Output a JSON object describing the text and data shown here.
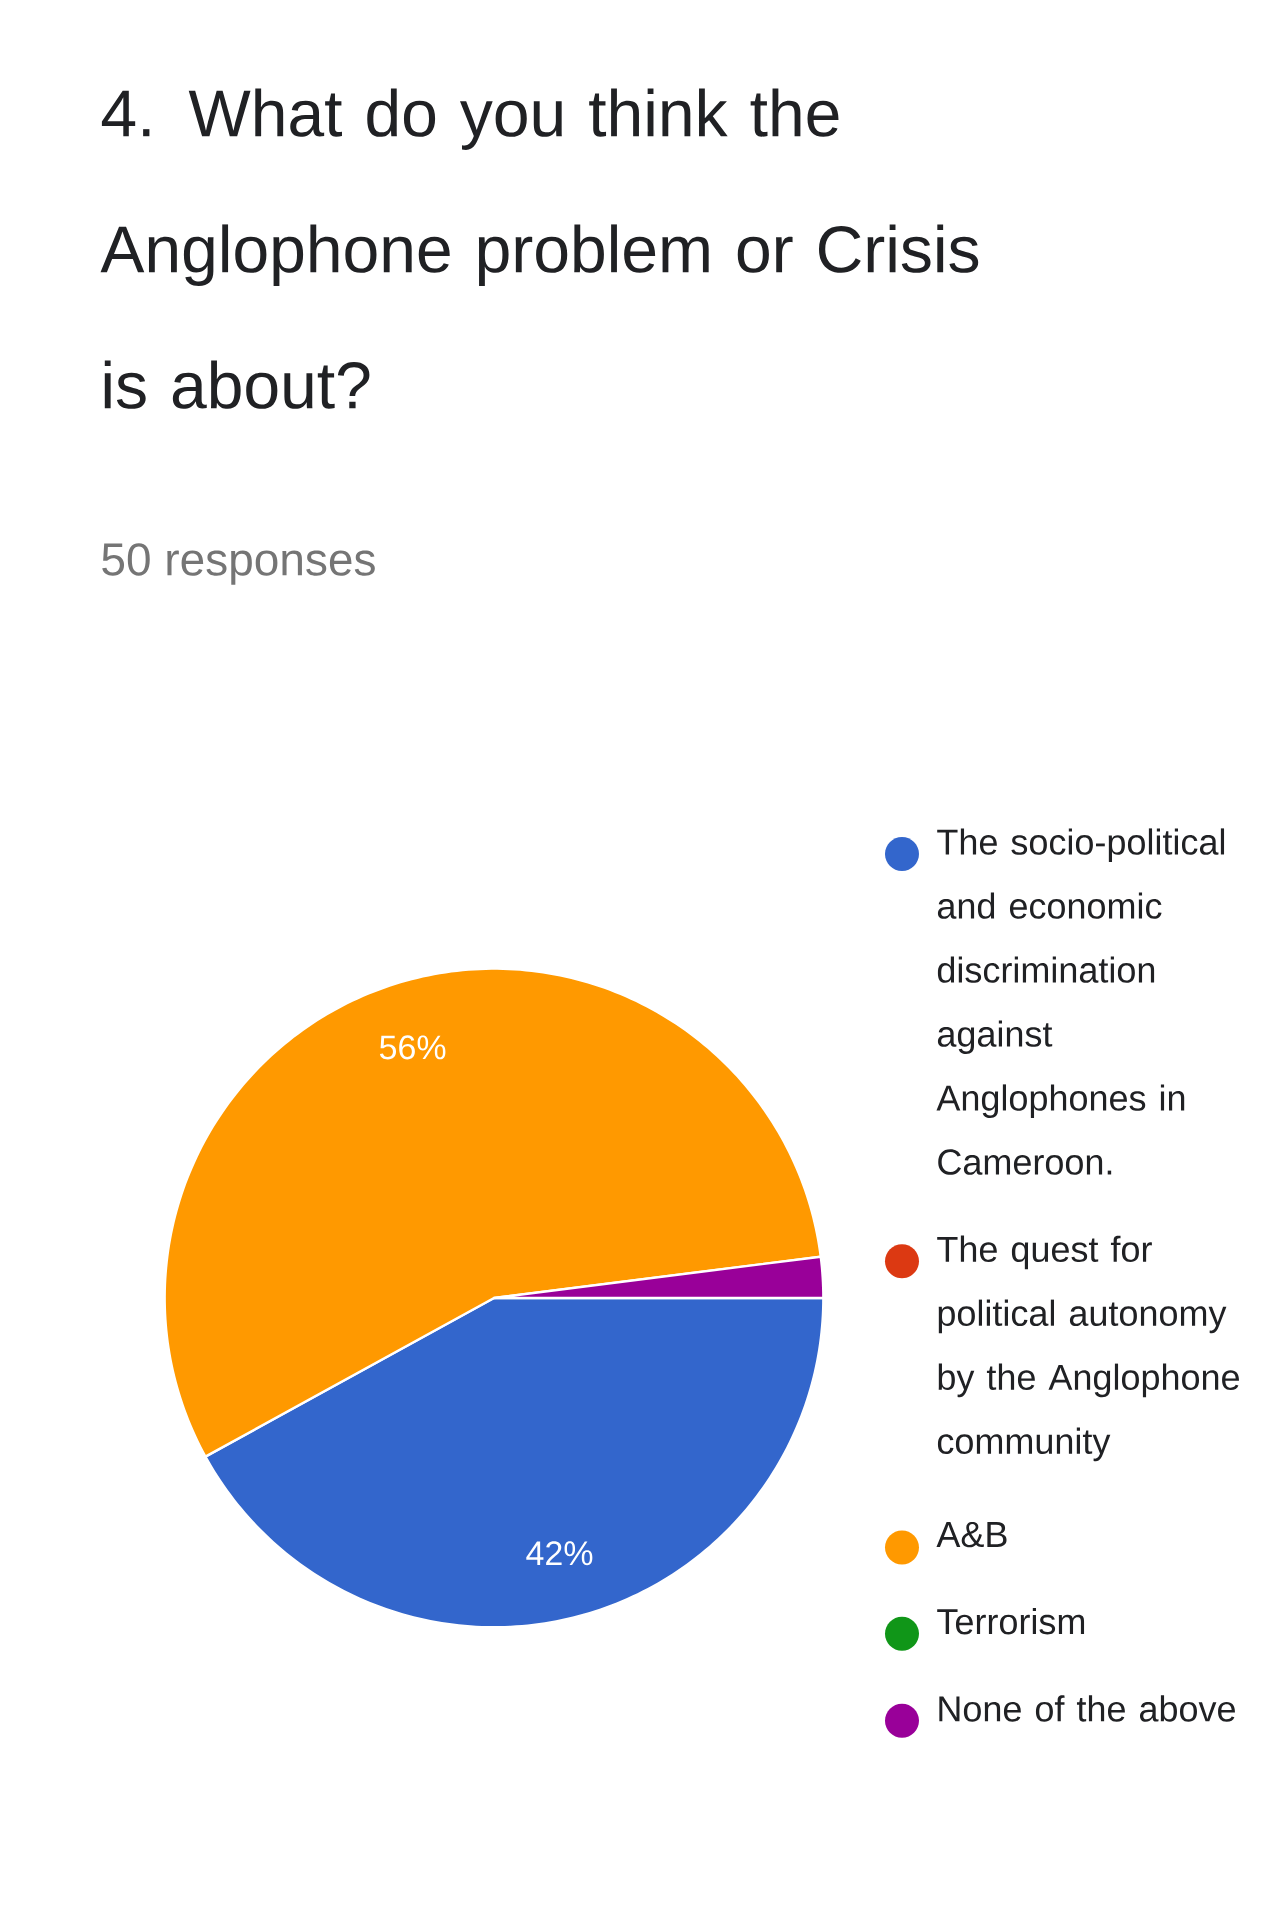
{
  "chart_data": {
    "type": "pie",
    "title": "4. What do you think the Anglophone problem or Crisis is about?",
    "subtitle": "50 responses",
    "categories": [
      "The socio-political and economic discrimination against Anglophones in Cameroon.",
      "The quest for political autonomy by the Anglophone community",
      "A&B",
      "Terrorism",
      "None of the above"
    ],
    "values": [
      42,
      0,
      56,
      0,
      2
    ],
    "colors": [
      "#3366cc",
      "#dc3912",
      "#ff9900",
      "#109618",
      "#990099"
    ],
    "value_labels": [
      "42%",
      null,
      "56%",
      null,
      null
    ],
    "legend": "right"
  }
}
